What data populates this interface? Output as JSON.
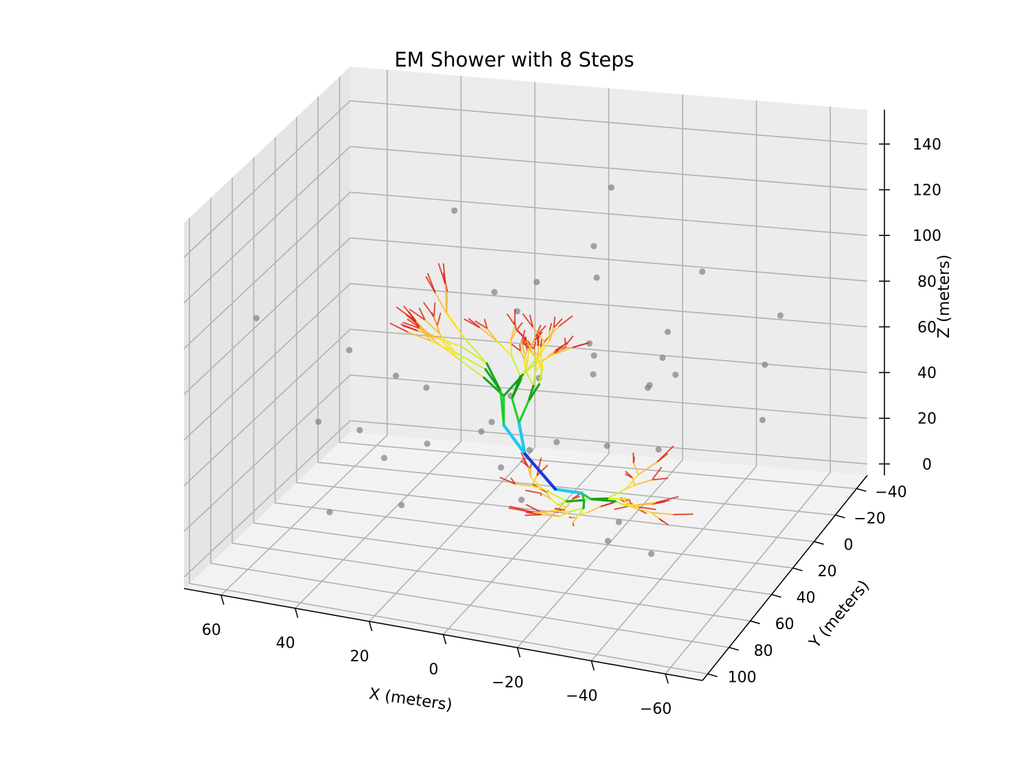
{
  "chart_data": {
    "type": "3d-line",
    "title": "EM Shower with 8 Steps",
    "xlabel": "X (meters)",
    "ylabel": "Y (meters)",
    "zlabel": "Z (meters)",
    "x_ticks": [
      "60",
      "40",
      "20",
      "0",
      "−20",
      "−40",
      "−60"
    ],
    "y_ticks": [
      "−40",
      "−20",
      "0",
      "20",
      "40",
      "60",
      "80",
      "100"
    ],
    "z_ticks": [
      "0",
      "20",
      "40",
      "60",
      "80",
      "100",
      "120",
      "140"
    ],
    "xlim": [
      70,
      -70
    ],
    "ylim": [
      -50,
      105
    ],
    "zlim": [
      -5,
      155
    ],
    "grid": true,
    "generation_colors": [
      "#1030e0",
      "#10c8f0",
      "#10d020",
      "#10a010",
      "#c8f018",
      "#f8e020",
      "#f8b820",
      "#e02010"
    ],
    "background_points_color": "#808080"
  }
}
